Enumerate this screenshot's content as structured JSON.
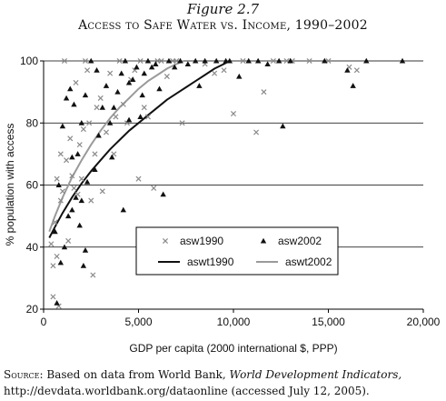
{
  "figure_label": "Figure 2.7",
  "figure_title": "Access to Safe Water vs. Income, 1990–2002",
  "source": {
    "lead": "Source:",
    "text_before": "Based on data from World Bank,",
    "italic": "World Development Indicators,",
    "text_after": "http://devdata.worldbank.org/dataonline (accessed July 12, 2005)."
  },
  "colors": {
    "asw1990": "#8a8a8a",
    "asw2002": "#111111",
    "aswt1990": "#111111",
    "aswt2002": "#9a9a9a"
  },
  "chart_data": {
    "type": "scatter",
    "title": "Access to Safe Water vs. Income, 1990–2002",
    "xlabel": "GDP per capita (2000 international $, PPP)",
    "ylabel": "% population with access",
    "xlim": [
      0,
      20000
    ],
    "ylim": [
      20,
      100
    ],
    "xticks": [
      0,
      5000,
      10000,
      15000,
      20000
    ],
    "xtick_labels": [
      "0",
      "5,000",
      "10,000",
      "15,000",
      "20,000"
    ],
    "yticks": [
      20,
      40,
      60,
      80,
      100
    ],
    "yticks_labels": [
      "20",
      "40",
      "60",
      "80",
      "100"
    ],
    "grid": "horizontal",
    "legend_position": "center-right",
    "series": [
      {
        "name": "asw1990",
        "kind": "scatter",
        "marker": "x",
        "points": [
          [
            400,
            41
          ],
          [
            500,
            34
          ],
          [
            500,
            24
          ],
          [
            700,
            37
          ],
          [
            800,
            21
          ],
          [
            600,
            48
          ],
          [
            900,
            55
          ],
          [
            1000,
            58
          ],
          [
            700,
            62
          ],
          [
            900,
            70
          ],
          [
            1200,
            68
          ],
          [
            1400,
            75
          ],
          [
            1500,
            63
          ],
          [
            1600,
            59
          ],
          [
            1800,
            57
          ],
          [
            1900,
            73
          ],
          [
            2000,
            62
          ],
          [
            2100,
            78
          ],
          [
            2200,
            100
          ],
          [
            2400,
            80
          ],
          [
            2500,
            55
          ],
          [
            2700,
            70
          ],
          [
            2800,
            85
          ],
          [
            3000,
            88
          ],
          [
            3100,
            58
          ],
          [
            3300,
            77
          ],
          [
            3500,
            96
          ],
          [
            3700,
            70
          ],
          [
            3800,
            82
          ],
          [
            4000,
            100
          ],
          [
            4200,
            86
          ],
          [
            4400,
            80
          ],
          [
            4600,
            94
          ],
          [
            4800,
            97
          ],
          [
            5000,
            62
          ],
          [
            5100,
            100
          ],
          [
            5300,
            85
          ],
          [
            5500,
            82
          ],
          [
            5800,
            59
          ],
          [
            6000,
            100
          ],
          [
            6200,
            100
          ],
          [
            6500,
            95
          ],
          [
            6800,
            100
          ],
          [
            7000,
            100
          ],
          [
            7300,
            80
          ],
          [
            1100,
            100
          ],
          [
            1700,
            93
          ],
          [
            2300,
            97
          ],
          [
            2600,
            31
          ],
          [
            1300,
            42
          ],
          [
            8500,
            99
          ],
          [
            9000,
            96
          ],
          [
            9500,
            97
          ],
          [
            10000,
            83
          ],
          [
            10500,
            100
          ],
          [
            11200,
            77
          ],
          [
            11600,
            90
          ],
          [
            12100,
            100
          ],
          [
            13100,
            100
          ],
          [
            15000,
            100
          ],
          [
            16100,
            98
          ],
          [
            16500,
            97
          ],
          [
            14000,
            100
          ],
          [
            12800,
            100
          ]
        ]
      },
      {
        "name": "asw2002",
        "kind": "scatter",
        "marker": "triangle",
        "points": [
          [
            600,
            45
          ],
          [
            700,
            22
          ],
          [
            900,
            35
          ],
          [
            1100,
            40
          ],
          [
            1300,
            50
          ],
          [
            1500,
            69
          ],
          [
            1700,
            56
          ],
          [
            1900,
            47
          ],
          [
            2100,
            34
          ],
          [
            2300,
            61
          ],
          [
            2500,
            100
          ],
          [
            1000,
            79
          ],
          [
            1200,
            88
          ],
          [
            1400,
            91
          ],
          [
            1600,
            86
          ],
          [
            1800,
            70
          ],
          [
            2000,
            80
          ],
          [
            2200,
            89
          ],
          [
            2700,
            65
          ],
          [
            2900,
            76
          ],
          [
            3100,
            85
          ],
          [
            3300,
            92
          ],
          [
            3500,
            80
          ],
          [
            3700,
            85
          ],
          [
            3900,
            90
          ],
          [
            4100,
            96
          ],
          [
            4300,
            100
          ],
          [
            4500,
            93
          ],
          [
            4700,
            94
          ],
          [
            4900,
            98
          ],
          [
            5100,
            82
          ],
          [
            5300,
            96
          ],
          [
            5500,
            100
          ],
          [
            5700,
            98
          ],
          [
            5900,
            99
          ],
          [
            6100,
            91
          ],
          [
            6300,
            57
          ],
          [
            6600,
            100
          ],
          [
            6900,
            98
          ],
          [
            7200,
            100
          ],
          [
            7600,
            99
          ],
          [
            8200,
            92
          ],
          [
            8500,
            100
          ],
          [
            9100,
            100
          ],
          [
            9600,
            100
          ],
          [
            10300,
            95
          ],
          [
            10800,
            100
          ],
          [
            11300,
            100
          ],
          [
            11800,
            99
          ],
          [
            12400,
            100
          ],
          [
            13000,
            100
          ],
          [
            12600,
            79
          ],
          [
            14800,
            100
          ],
          [
            16000,
            97
          ],
          [
            16300,
            92
          ],
          [
            17000,
            100
          ],
          [
            18900,
            100
          ],
          [
            800,
            60
          ],
          [
            1500,
            52
          ],
          [
            2000,
            55
          ],
          [
            2200,
            39
          ],
          [
            4500,
            81
          ],
          [
            4200,
            52
          ],
          [
            5200,
            89
          ],
          [
            3600,
            69
          ],
          [
            2800,
            97
          ],
          [
            8000,
            100
          ],
          [
            9800,
            100
          ]
        ]
      },
      {
        "name": "aswt1990",
        "kind": "line",
        "points": [
          [
            300,
            43
          ],
          [
            600,
            46.5
          ],
          [
            1000,
            51
          ],
          [
            1500,
            56
          ],
          [
            2000,
            60.5
          ],
          [
            2500,
            64.5
          ],
          [
            3000,
            68
          ],
          [
            3500,
            71.5
          ],
          [
            4000,
            74.5
          ],
          [
            4500,
            77.5
          ],
          [
            5000,
            80
          ],
          [
            5500,
            82.5
          ],
          [
            6000,
            85
          ],
          [
            6500,
            87.5
          ],
          [
            7000,
            89.5
          ],
          [
            7500,
            91.5
          ],
          [
            8000,
            93.5
          ],
          [
            8500,
            95.5
          ],
          [
            9000,
            97.5
          ],
          [
            9500,
            99
          ],
          [
            9800,
            100
          ],
          [
            11000,
            100
          ],
          [
            15000,
            100
          ],
          [
            20000,
            100
          ]
        ]
      },
      {
        "name": "aswt2002",
        "kind": "line",
        "points": [
          [
            300,
            45
          ],
          [
            600,
            50
          ],
          [
            1000,
            56
          ],
          [
            1500,
            62.5
          ],
          [
            2000,
            68
          ],
          [
            2500,
            73
          ],
          [
            3000,
            77.5
          ],
          [
            3500,
            81.5
          ],
          [
            4000,
            85
          ],
          [
            4500,
            88
          ],
          [
            5000,
            91
          ],
          [
            5500,
            93.5
          ],
          [
            6000,
            95.5
          ],
          [
            6500,
            97.5
          ],
          [
            7000,
            99
          ],
          [
            7400,
            100
          ],
          [
            10000,
            100
          ],
          [
            15000,
            100
          ],
          [
            20000,
            100
          ]
        ]
      }
    ]
  }
}
